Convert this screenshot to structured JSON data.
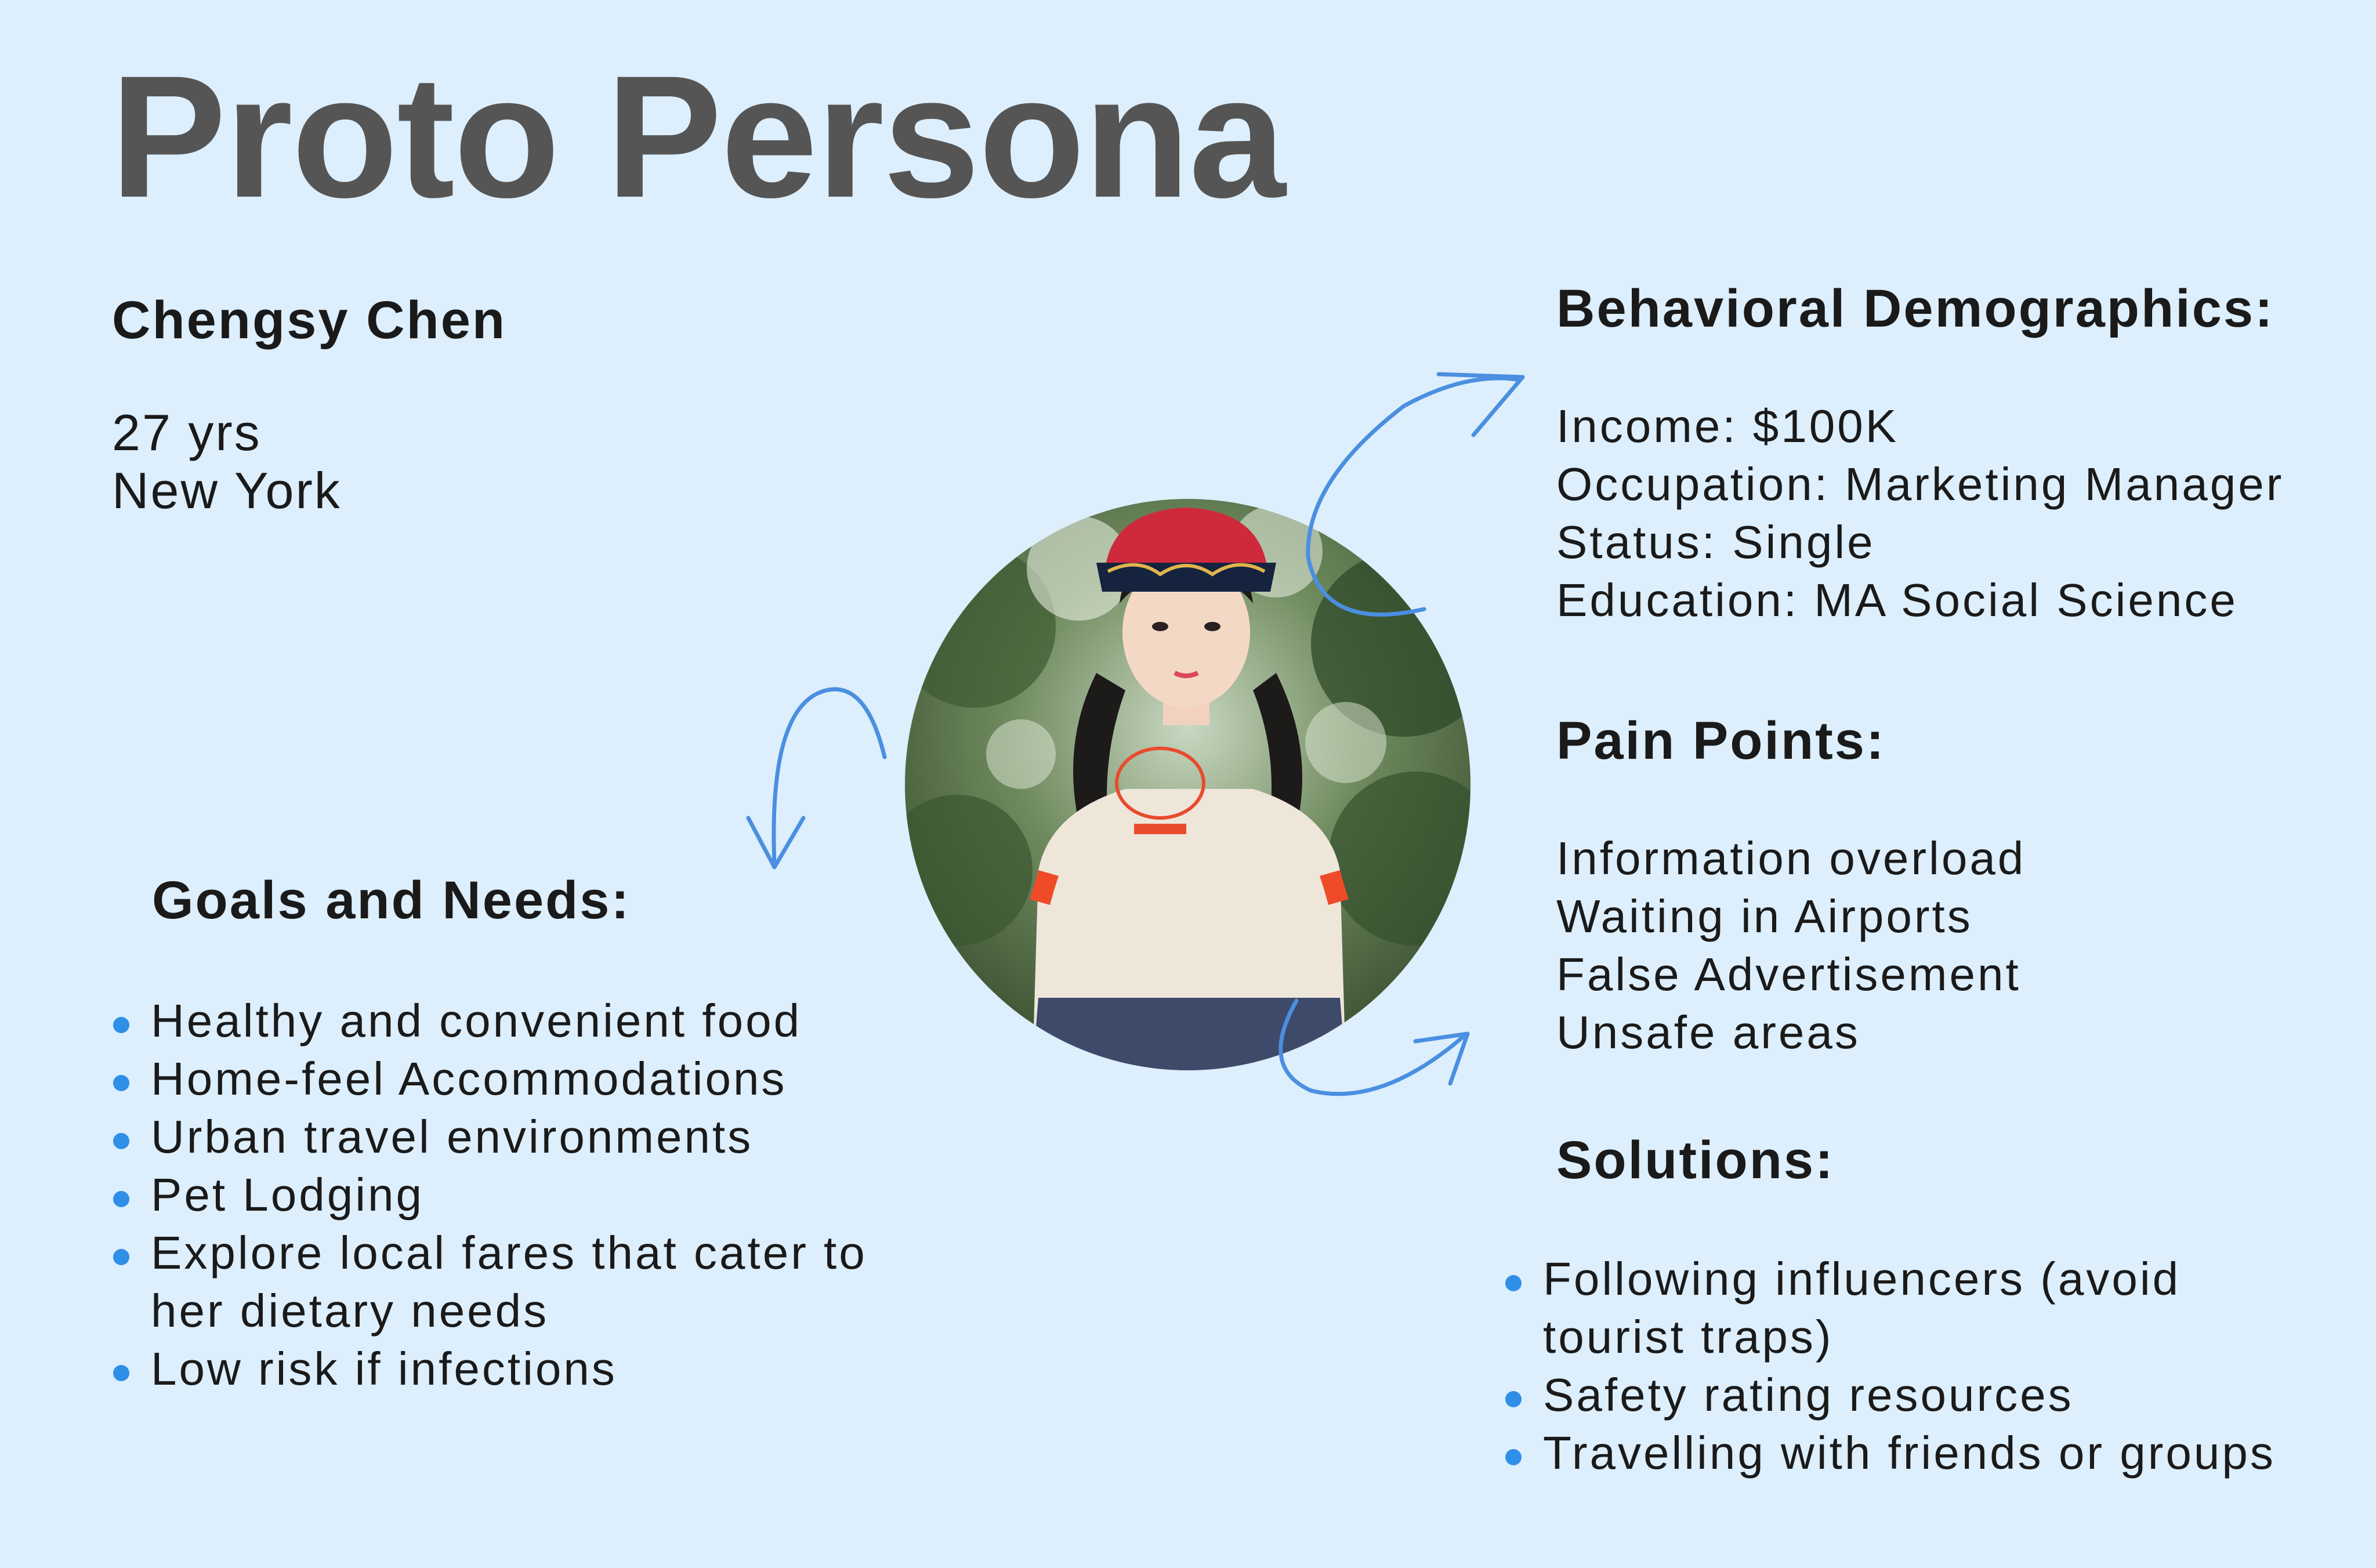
{
  "title": "Proto Persona",
  "persona": {
    "name": "Chengsy Chen",
    "age": "27 yrs",
    "location": "New York"
  },
  "behavioral": {
    "heading": "Behavioral Demographics:",
    "items": [
      "Income: $100K",
      "Occupation: Marketing Manager",
      "Status: Single",
      "Education: MA Social Science"
    ]
  },
  "pain_points": {
    "heading": "Pain Points:",
    "items": [
      "Information overload",
      "Waiting in Airports",
      "False Advertisement",
      "Unsafe areas"
    ]
  },
  "solutions": {
    "heading": "Solutions:",
    "items": [
      "Following influencers (avoid tourist traps)",
      "Safety rating resources",
      "Travelling with friends or groups"
    ]
  },
  "goals": {
    "heading": "Goals and Needs:",
    "items": [
      "Healthy and convenient food",
      "Home-feel Accommodations",
      "Urban travel environments",
      "Pet Lodging",
      "Explore local fares that cater to her dietary needs",
      "Low risk if infections"
    ]
  },
  "colors": {
    "background": "#ddeefc",
    "accent": "#2f8fe8",
    "title": "#555555",
    "text": "#1a1a1a"
  },
  "icons": {
    "bullet": "bullet-dot-icon",
    "arrow": "curved-arrow-icon"
  }
}
